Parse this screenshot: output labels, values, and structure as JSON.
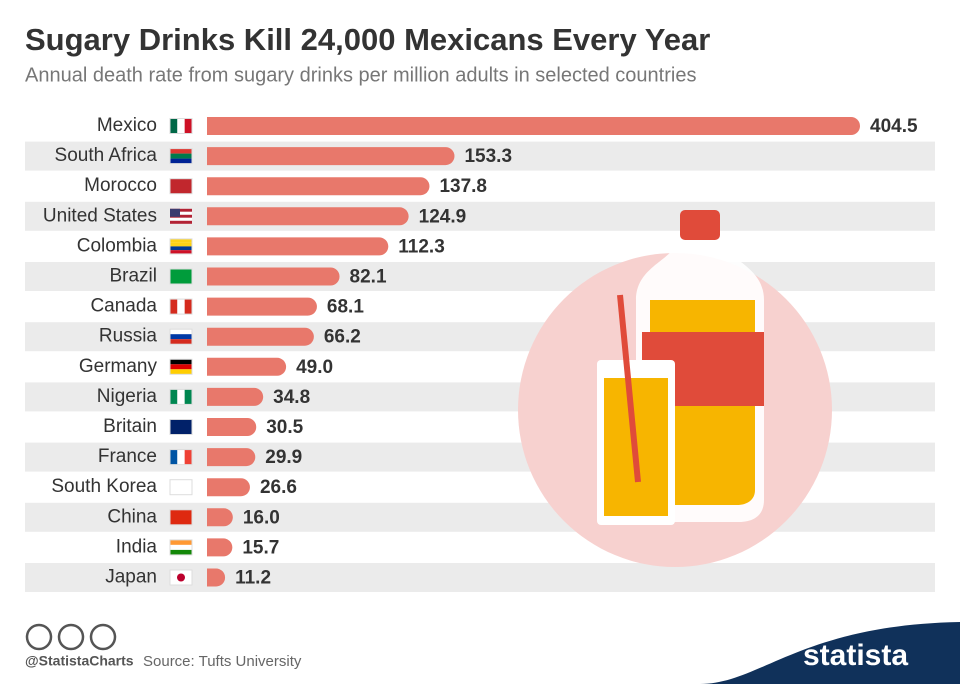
{
  "chart_data": {
    "type": "bar",
    "orientation": "horizontal",
    "title": "Sugary Drinks Kill 24,000 Mexicans Every Year",
    "subtitle": "Annual death rate from sugary drinks per million adults in selected countries",
    "categories": [
      "Mexico",
      "South Africa",
      "Morocco",
      "United States",
      "Colombia",
      "Brazil",
      "Canada",
      "Russia",
      "Germany",
      "Nigeria",
      "Britain",
      "France",
      "South Korea",
      "China",
      "India",
      "Japan"
    ],
    "values": [
      404.5,
      153.3,
      137.8,
      124.9,
      112.3,
      82.1,
      68.1,
      66.2,
      49.0,
      34.8,
      30.5,
      29.9,
      26.6,
      16.0,
      15.7,
      11.2
    ],
    "value_labels": [
      "404.5",
      "153.3",
      "137.8",
      "124.9",
      "112.3",
      "82.1",
      "68.1",
      "66.2",
      "49.0",
      "34.8",
      "30.5",
      "29.9",
      "26.6",
      "16.0",
      "15.7",
      "11.2"
    ],
    "color": "#e8786b"
  },
  "footer": {
    "handle": "@StatistaCharts",
    "source": "Source: Tufts University",
    "brand": "statista"
  }
}
